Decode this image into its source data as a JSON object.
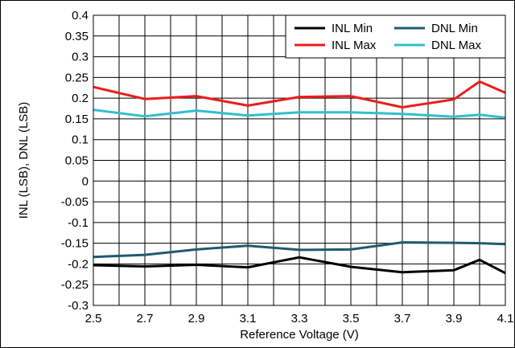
{
  "chart_data": {
    "type": "line",
    "xlabel": "Reference Voltage (V)",
    "ylabel": "INL (LSB), DNL (LSB)",
    "xlim": [
      2.5,
      4.1
    ],
    "ylim": [
      -0.3,
      0.4
    ],
    "x_ticks": [
      "2.5",
      "2.7",
      "2.9",
      "3.1",
      "3.3",
      "3.5",
      "3.7",
      "3.9",
      "4.1"
    ],
    "y_ticks": [
      "0.4",
      "0.35",
      "0.3",
      "0.25",
      "0.2",
      "0.15",
      "0.1",
      "0.05",
      "0",
      "-0.05",
      "-0.1",
      "-0.15",
      "-0.2",
      "-0.25",
      "-0.3"
    ],
    "grid": true,
    "legend_position": "top-right",
    "x": [
      2.5,
      2.7,
      2.9,
      3.1,
      3.3,
      3.5,
      3.7,
      3.9,
      4.0,
      4.1
    ],
    "series": [
      {
        "name": "INL Min",
        "color": "#000000",
        "values": [
          -0.203,
          -0.206,
          -0.202,
          -0.208,
          -0.184,
          -0.207,
          -0.22,
          -0.215,
          -0.19,
          -0.222
        ]
      },
      {
        "name": "INL Max",
        "color": "#ee1c1c",
        "values": [
          0.227,
          0.198,
          0.205,
          0.182,
          0.203,
          0.205,
          0.178,
          0.197,
          0.24,
          0.213
        ]
      },
      {
        "name": "DNL Min",
        "color": "#1f5b6e",
        "values": [
          -0.183,
          -0.178,
          -0.165,
          -0.156,
          -0.166,
          -0.165,
          -0.148,
          -0.149,
          -0.15,
          -0.152
        ]
      },
      {
        "name": "DNL Max",
        "color": "#33bfcc",
        "values": [
          0.172,
          0.156,
          0.17,
          0.158,
          0.166,
          0.166,
          0.162,
          0.155,
          0.16,
          0.153
        ]
      }
    ]
  }
}
